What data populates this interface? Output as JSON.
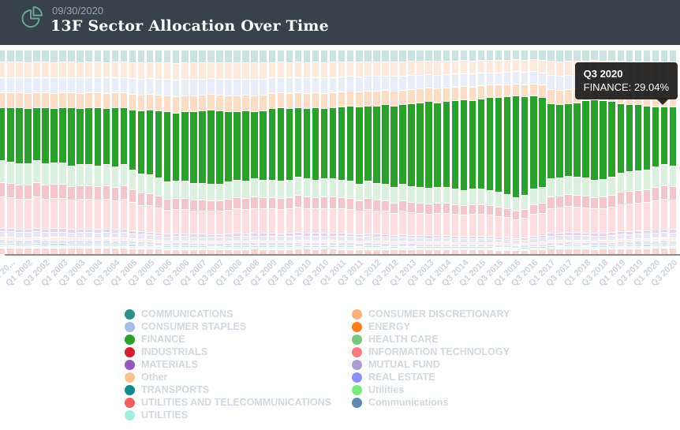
{
  "header": {
    "date": "09/30/2020",
    "title": "13F Sector Allocation Over Time",
    "icon": "pie-chart-icon"
  },
  "colors": {
    "header_bg": "#37424a",
    "header_icon_teal": "#67a894",
    "finance_green": "#2ca02c",
    "axis_line": "#8f8f8f",
    "tick_label": "#ccd1dd",
    "legend_label": "#d3d7e0",
    "tooltip_bg": "rgba(16,16,16,0.88)"
  },
  "tooltip": {
    "title": "Q3 2020",
    "text": "FINANCE: 29.04%"
  },
  "legend": {
    "left": [
      {
        "label": "COMMUNICATIONS",
        "color": "#2d8f88"
      },
      {
        "label": "CONSUMER STAPLES",
        "color": "#a6bde6"
      },
      {
        "label": "FINANCE",
        "color": "#2ca02c"
      },
      {
        "label": "INDUSTRIALS",
        "color": "#d0212f"
      },
      {
        "label": "MATERIALS",
        "color": "#9659c2"
      },
      {
        "label": "Other",
        "color": "#fdc38d"
      },
      {
        "label": "TRANSPORTS",
        "color": "#0f8b8d"
      },
      {
        "label": "UTILITIES AND TELECOMMUNICATIONS",
        "color": "#f05d5e"
      },
      {
        "label": "UTILITIES",
        "color": "#a7ece0"
      }
    ],
    "right": [
      {
        "label": "CONSUMER DISCRETIONARY",
        "color": "#fcb07c"
      },
      {
        "label": "ENERGY",
        "color": "#fa7d1c"
      },
      {
        "label": "HEALTH CARE",
        "color": "#79c77e"
      },
      {
        "label": "INFORMATION TECHNOLOGY",
        "color": "#fa7b80"
      },
      {
        "label": "MUTUAL FUND",
        "color": "#ad9bd3"
      },
      {
        "label": "REAL ESTATE",
        "color": "#8d90fa"
      },
      {
        "label": "Utilities",
        "color": "#7ce87c"
      },
      {
        "label": "Communications",
        "color": "#6288ad"
      }
    ]
  },
  "chart_data": {
    "type": "bar",
    "stacked": true,
    "unit": "%",
    "ylim": [
      0,
      100
    ],
    "grid": false,
    "highlighted_series": "FINANCE",
    "known_point": {
      "quarter": "Q3 2020",
      "series": "FINANCE",
      "value": 29.04
    },
    "finance": {
      "name": "FINANCE",
      "color": "#2ca02c"
    },
    "stack_above": [
      {
        "name": "COMMUNICATIONS",
        "color": "#2d8f88",
        "w": 6
      },
      {
        "name": "CONSUMER DISCRETIONARY",
        "color": "#fcb07c",
        "w": 8
      },
      {
        "name": "CONSUMER STAPLES",
        "color": "#a6bde6",
        "w": 8
      },
      {
        "name": "ENERGY",
        "color": "#fa7d1c",
        "w": 8
      }
    ],
    "stack_below": [
      {
        "name": "HEALTH CARE",
        "color": "#79c77e",
        "w": 12
      },
      {
        "name": "INDUSTRIALS",
        "color": "#d0212f",
        "w": 8
      },
      {
        "name": "INFORMATION TECHNOLOGY",
        "color": "#fa7b80",
        "w": 17
      },
      {
        "name": "MATERIALS",
        "color": "#9659c2",
        "w": 2
      },
      {
        "name": "MUTUAL FUND",
        "color": "#ad9bd3",
        "w": 3
      },
      {
        "name": "Other",
        "color": "#fdc38d",
        "w": 1.5
      },
      {
        "name": "REAL ESTATE",
        "color": "#8d90fa",
        "w": 2
      },
      {
        "name": "TRANSPORTS",
        "color": "#0f8b8d",
        "w": 1
      },
      {
        "name": "UTILITIES",
        "color": "#a7ece0",
        "w": 1.5
      },
      {
        "name": "UTILITIES AND TELECOMMUNICATIONS",
        "color": "#f05d5e",
        "w": 3.5
      }
    ],
    "columns": [
      "quarter",
      "finance_pct_est",
      "sectors_above_finance_pct_est"
    ],
    "clipped_first_bar": [
      "Q2 2001",
      26.0,
      28.0
    ],
    "bars": [
      [
        "Q3 2001",
        26.5,
        28.0
      ],
      [
        "Q4 2001",
        27.5,
        28.0
      ],
      [
        "Q1 2002",
        27.0,
        28.5
      ],
      [
        "Q2 2002",
        26.0,
        28.0
      ],
      [
        "Q3 2002",
        27.5,
        28.0
      ],
      [
        "Q4 2002",
        26.5,
        28.5
      ],
      [
        "Q1 2003",
        27.0,
        28.0
      ],
      [
        "Q2 2003",
        28.5,
        28.0
      ],
      [
        "Q3 2003",
        27.5,
        28.5
      ],
      [
        "Q4 2003",
        28.0,
        28.0
      ],
      [
        "Q1 2004",
        28.5,
        28.0
      ],
      [
        "Q2 2004",
        27.5,
        28.5
      ],
      [
        "Q3 2004",
        29.0,
        28.0
      ],
      [
        "Q4 2004",
        28.0,
        28.0
      ],
      [
        "Q1 2005",
        29.5,
        29.0
      ],
      [
        "Q2 2005",
        31.0,
        29.5
      ],
      [
        "Q3 2005",
        32.0,
        29.0
      ],
      [
        "Q4 2005",
        33.0,
        29.5
      ],
      [
        "Q1 2006",
        34.5,
        30.0
      ],
      [
        "Q2 2006",
        33.5,
        30.5
      ],
      [
        "Q3 2006",
        34.0,
        30.0
      ],
      [
        "Q4 2006",
        35.0,
        30.0
      ],
      [
        "Q1 2007",
        35.5,
        29.5
      ],
      [
        "Q2 2007",
        36.5,
        29.0
      ],
      [
        "Q3 2007",
        36.0,
        29.5
      ],
      [
        "Q4 2007",
        34.5,
        30.0
      ],
      [
        "Q1 2008",
        33.5,
        30.0
      ],
      [
        "Q2 2008",
        34.5,
        29.5
      ],
      [
        "Q3 2008",
        33.0,
        30.0
      ],
      [
        "Q4 2008",
        34.0,
        29.5
      ],
      [
        "Q1 2009",
        35.0,
        28.5
      ],
      [
        "Q2 2009",
        36.0,
        28.0
      ],
      [
        "Q3 2009",
        35.0,
        28.5
      ],
      [
        "Q4 2009",
        34.0,
        28.0
      ],
      [
        "Q1 2010",
        34.5,
        28.5
      ],
      [
        "Q2 2010",
        35.5,
        28.0
      ],
      [
        "Q3 2010",
        34.5,
        28.5
      ],
      [
        "Q4 2010",
        35.0,
        28.0
      ],
      [
        "Q1 2011",
        36.0,
        27.5
      ],
      [
        "Q2 2011",
        37.0,
        27.0
      ],
      [
        "Q3 2011",
        38.0,
        27.5
      ],
      [
        "Q4 2011",
        37.0,
        27.0
      ],
      [
        "Q1 2012",
        38.0,
        27.0
      ],
      [
        "Q2 2012",
        39.0,
        26.5
      ],
      [
        "Q3 2012",
        40.0,
        27.0
      ],
      [
        "Q4 2012",
        39.0,
        26.5
      ],
      [
        "Q1 2013",
        40.5,
        26.0
      ],
      [
        "Q2 2013",
        41.5,
        25.5
      ],
      [
        "Q3 2013",
        42.5,
        25.0
      ],
      [
        "Q4 2013",
        41.5,
        25.5
      ],
      [
        "Q1 2014",
        42.0,
        25.0
      ],
      [
        "Q2 2014",
        43.5,
        24.5
      ],
      [
        "Q3 2014",
        44.5,
        24.0
      ],
      [
        "Q4 2014",
        43.5,
        24.5
      ],
      [
        "Q1 2015",
        44.5,
        23.5
      ],
      [
        "Q2 2015",
        45.5,
        23.0
      ],
      [
        "Q3 2015",
        46.5,
        23.0
      ],
      [
        "Q4 2015",
        48.0,
        22.5
      ],
      [
        "Q1 2016",
        50.0,
        22.0
      ],
      [
        "Q2 2016",
        48.5,
        22.5
      ],
      [
        "Q3 2016",
        46.0,
        22.0
      ],
      [
        "Q4 2016",
        44.0,
        23.0
      ],
      [
        "Q1 2017",
        37.0,
        26.0
      ],
      [
        "Q2 2017",
        36.0,
        26.5
      ],
      [
        "Q3 2017",
        35.5,
        26.0
      ],
      [
        "Q4 2017",
        36.5,
        25.5
      ],
      [
        "Q1 2018",
        38.0,
        24.5
      ],
      [
        "Q2 2018",
        39.5,
        24.0
      ],
      [
        "Q3 2018",
        38.5,
        24.5
      ],
      [
        "Q4 2018",
        37.0,
        25.0
      ],
      [
        "Q1 2019",
        34.0,
        26.0
      ],
      [
        "Q2 2019",
        33.0,
        26.5
      ],
      [
        "Q3 2019",
        32.5,
        26.5
      ],
      [
        "Q4 2019",
        31.5,
        27.0
      ],
      [
        "Q1 2020",
        29.5,
        27.5
      ],
      [
        "Q2 2020",
        28.5,
        27.5
      ],
      [
        "Q3 2020",
        29.04,
        27.5
      ]
    ],
    "x_tick_labels": [
      "Q3 20...",
      "Q1 2002",
      "Q3 2002",
      "Q1 2003",
      "Q3 2003",
      "Q1 2004",
      "Q3 2004",
      "Q1 2005",
      "Q3 2005",
      "Q1 2006",
      "Q3 2006",
      "Q1 2007",
      "Q3 2007",
      "Q1 2008",
      "Q3 2008",
      "Q1 2009",
      "Q3 2009",
      "Q1 2010",
      "Q3 2010",
      "Q1 2011",
      "Q3 2011",
      "Q1 2012",
      "Q3 2012",
      "Q1 2013",
      "Q3 2013",
      "Q1 2014",
      "Q3 2014",
      "Q1 2015",
      "Q3 2015",
      "Q1 2016",
      "Q3 2016",
      "Q1 2017",
      "Q3 2017",
      "Q1 2018",
      "Q3 2018",
      "Q1 2019",
      "Q3 2019",
      "Q1 2020",
      "Q3 2020"
    ]
  }
}
